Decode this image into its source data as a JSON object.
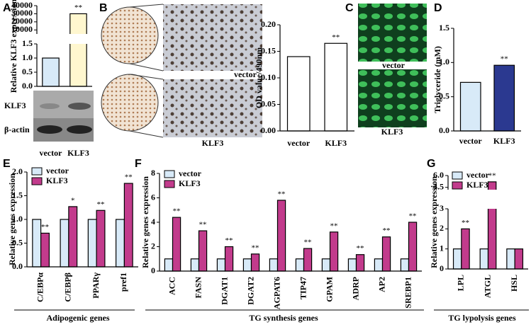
{
  "figure": {
    "panel_labels": [
      "A",
      "B",
      "C",
      "D",
      "E",
      "F",
      "G"
    ],
    "blot_labels": [
      "KLF3",
      "β-actin"
    ],
    "image_labels": [
      "vector",
      "KLF3",
      "vector",
      "KLF3"
    ]
  },
  "chart_data": [
    {
      "type": "bar",
      "ylabel": "Relative KLF3 expression",
      "categories": [
        "vector",
        "KLF3"
      ],
      "values": [
        1.0,
        30000
      ],
      "colors": [
        "#d8eaf8",
        "#fff7cf"
      ],
      "significance": [
        null,
        "**"
      ],
      "segments": [
        {
          "ylim": [
            0,
            1.5
          ],
          "yticks": [
            {
              "value": 0,
              "label": "0.0"
            },
            0.5,
            {
              "value": 1,
              "label": "1.0"
            },
            1.5
          ]
        },
        {
          "ylim": [
            5000,
            40000
          ],
          "yticks": [
            10000,
            20000,
            30000,
            40000
          ]
        }
      ]
    },
    {
      "type": "bar",
      "ylabel": "OD value/490nm",
      "categories": [
        "vector",
        "KLF3"
      ],
      "values": [
        0.14,
        0.165
      ],
      "colors": [
        "#ffffff",
        "#ffffff"
      ],
      "significance": [
        null,
        "**"
      ],
      "ylim": [
        0,
        0.2
      ],
      "yticks": [
        {
          "value": 0,
          "label": "0.00"
        },
        {
          "value": 0.05,
          "label": "0.05"
        },
        {
          "value": 0.1,
          "label": "0.10"
        },
        {
          "value": 0.15,
          "label": "0.15"
        },
        {
          "value": 0.2,
          "label": "0.20"
        }
      ]
    },
    {
      "type": "bar",
      "ylabel": "Triglyceride (mM)",
      "categories": [
        "vector",
        "KLF3"
      ],
      "values": [
        0.71,
        0.96
      ],
      "colors": [
        "#d8eaf8",
        "#2b3990"
      ],
      "significance": [
        null,
        "**"
      ],
      "ylim": [
        0,
        1.5
      ],
      "yticks": [
        {
          "value": 0,
          "label": "0.0"
        },
        0.5,
        {
          "value": 1,
          "label": "1.0"
        },
        1.5
      ]
    },
    {
      "type": "grouped_bar",
      "ylabel": "Relative genes expression",
      "xlabel": "Adipogenic genes",
      "categories": [
        "C/EBPα",
        "C/EBPβ",
        "PPARγ",
        "pref1"
      ],
      "series": [
        {
          "name": "vector",
          "color": "#d8eaf8",
          "values": [
            1,
            1,
            1,
            1
          ]
        },
        {
          "name": "KLF3",
          "color": "#c23b8c",
          "values": [
            0.71,
            1.27,
            1.19,
            1.76
          ],
          "significance": [
            "**",
            "*",
            "**",
            "**"
          ]
        }
      ],
      "ylim": [
        0,
        2
      ],
      "yticks": [
        {
          "value": 0,
          "label": "0.0"
        },
        0.5,
        {
          "value": 1,
          "label": "1.0"
        },
        1.5,
        {
          "value": 2,
          "label": "2.0"
        }
      ]
    },
    {
      "type": "grouped_bar",
      "ylabel": "Relative genes expression",
      "xlabel": "TG synthesis genes",
      "categories": [
        "ACC",
        "FASN",
        "DGAT1",
        "DGAT2",
        "AGPAT6",
        "TIP47",
        "GPAM",
        "ADRP",
        "AP2",
        "SREBP1"
      ],
      "series": [
        {
          "name": "vector",
          "color": "#d8eaf8",
          "values": [
            1,
            1,
            1,
            1,
            1,
            1,
            1,
            1,
            1,
            1
          ]
        },
        {
          "name": "KLF3",
          "color": "#c23b8c",
          "values": [
            4.4,
            3.3,
            2.0,
            1.4,
            5.8,
            1.85,
            3.2,
            1.35,
            2.8,
            4.0
          ],
          "significance": [
            "**",
            "**",
            "**",
            "**",
            "**",
            "**",
            "**",
            "**",
            "**",
            "**"
          ]
        }
      ],
      "ylim": [
        0,
        8
      ],
      "yticks": [
        0,
        2,
        4,
        6,
        8
      ]
    },
    {
      "type": "grouped_bar",
      "ylabel": "Relative genes expression",
      "xlabel": "TG lypolysis genes",
      "categories": [
        "LPL",
        "ATGL",
        "HSL"
      ],
      "series": [
        {
          "name": "vector",
          "color": "#d8eaf8",
          "values": [
            1,
            1,
            1
          ]
        },
        {
          "name": "KLF3",
          "color": "#c23b8c",
          "values": [
            2.0,
            5.2,
            1.0
          ],
          "significance": [
            "**",
            "**",
            null
          ]
        }
      ],
      "segments": [
        {
          "ylim": [
            0,
            3
          ],
          "yticks": [
            0,
            1,
            2,
            3
          ]
        },
        {
          "ylim": [
            4.2,
            6
          ],
          "yticks": [
            4.5,
            {
              "value": 6,
              "label": "6.0"
            }
          ]
        }
      ]
    }
  ]
}
